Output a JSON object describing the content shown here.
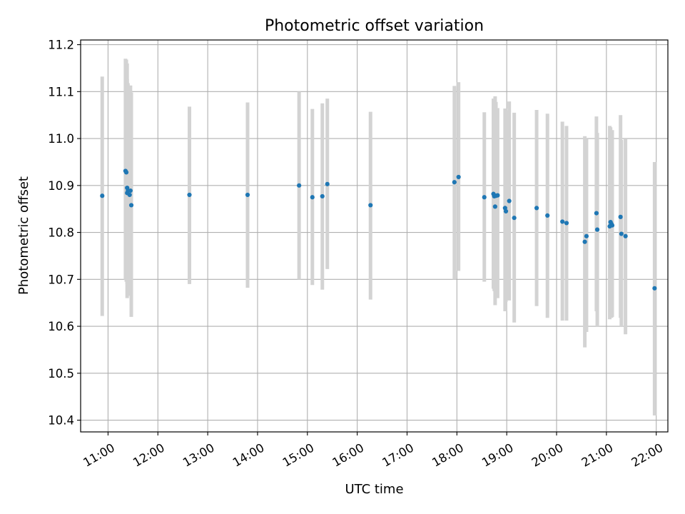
{
  "chart_data": {
    "type": "scatter",
    "title": "Photometric offset variation",
    "xlabel": "UTC time",
    "ylabel": "Photometric offset",
    "grid": true,
    "legend": "none",
    "xlim": [
      "10:27",
      "22:14"
    ],
    "ylim": [
      10.375,
      11.21
    ],
    "x_ticks": [
      "11:00",
      "12:00",
      "13:00",
      "14:00",
      "15:00",
      "16:00",
      "17:00",
      "18:00",
      "19:00",
      "20:00",
      "21:00",
      "22:00"
    ],
    "y_ticks": [
      "10.4",
      "10.5",
      "10.6",
      "10.7",
      "10.8",
      "10.9",
      "11.0",
      "11.1",
      "11.2"
    ],
    "point_color": "#1f77b4",
    "errorbar_color": "#d3d3d3",
    "series": [
      {
        "x": [
          "10:53",
          "11:21",
          "11:22",
          "11:23",
          "11:23",
          "11:24",
          "11:26",
          "11:27",
          "11:28",
          "12:38",
          "13:48",
          "14:50",
          "15:06",
          "15:18",
          "15:24",
          "16:16",
          "17:57",
          "18:02",
          "18:33",
          "18:44",
          "18:45",
          "18:46",
          "18:47",
          "18:49",
          "18:58",
          "18:59",
          "19:03",
          "19:09",
          "19:36",
          "19:49",
          "20:07",
          "20:12",
          "20:34",
          "20:36",
          "20:48",
          "20:49",
          "21:04",
          "21:05",
          "21:06",
          "21:07",
          "21:17",
          "21:18",
          "21:23",
          "21:58"
        ],
        "y": [
          10.878,
          10.931,
          10.928,
          10.895,
          10.884,
          10.889,
          10.88,
          10.889,
          10.858,
          10.88,
          10.88,
          10.9,
          10.875,
          10.877,
          10.903,
          10.858,
          10.907,
          10.918,
          10.875,
          10.882,
          10.877,
          10.855,
          10.878,
          10.879,
          10.852,
          10.845,
          10.867,
          10.831,
          10.852,
          10.836,
          10.823,
          10.82,
          10.78,
          10.792,
          10.841,
          10.806,
          10.813,
          10.822,
          10.818,
          10.815,
          10.833,
          10.797,
          10.792,
          10.681
        ],
        "err_low": [
          10.622,
          10.7,
          10.695,
          10.69,
          10.66,
          10.665,
          10.67,
          10.68,
          10.62,
          10.69,
          10.682,
          10.7,
          10.688,
          10.678,
          10.722,
          10.657,
          10.7,
          10.718,
          10.695,
          10.68,
          10.675,
          10.645,
          10.665,
          10.66,
          10.632,
          10.652,
          10.655,
          10.608,
          10.643,
          10.618,
          10.612,
          10.612,
          10.555,
          10.588,
          10.632,
          10.6,
          10.615,
          10.63,
          10.618,
          10.62,
          10.618,
          10.6,
          10.583,
          10.41
        ],
        "err_high": [
          11.132,
          11.17,
          11.168,
          11.16,
          11.127,
          11.118,
          11.1,
          11.113,
          11.098,
          11.068,
          11.077,
          11.1,
          11.063,
          11.075,
          11.085,
          11.057,
          11.112,
          11.12,
          11.056,
          11.085,
          11.082,
          11.09,
          11.078,
          11.065,
          11.064,
          11.06,
          11.079,
          11.055,
          11.061,
          11.053,
          11.036,
          11.027,
          11.005,
          11.0,
          11.047,
          11.012,
          11.027,
          11.024,
          11.011,
          11.018,
          11.05,
          10.997,
          11.0,
          10.95
        ]
      }
    ]
  }
}
